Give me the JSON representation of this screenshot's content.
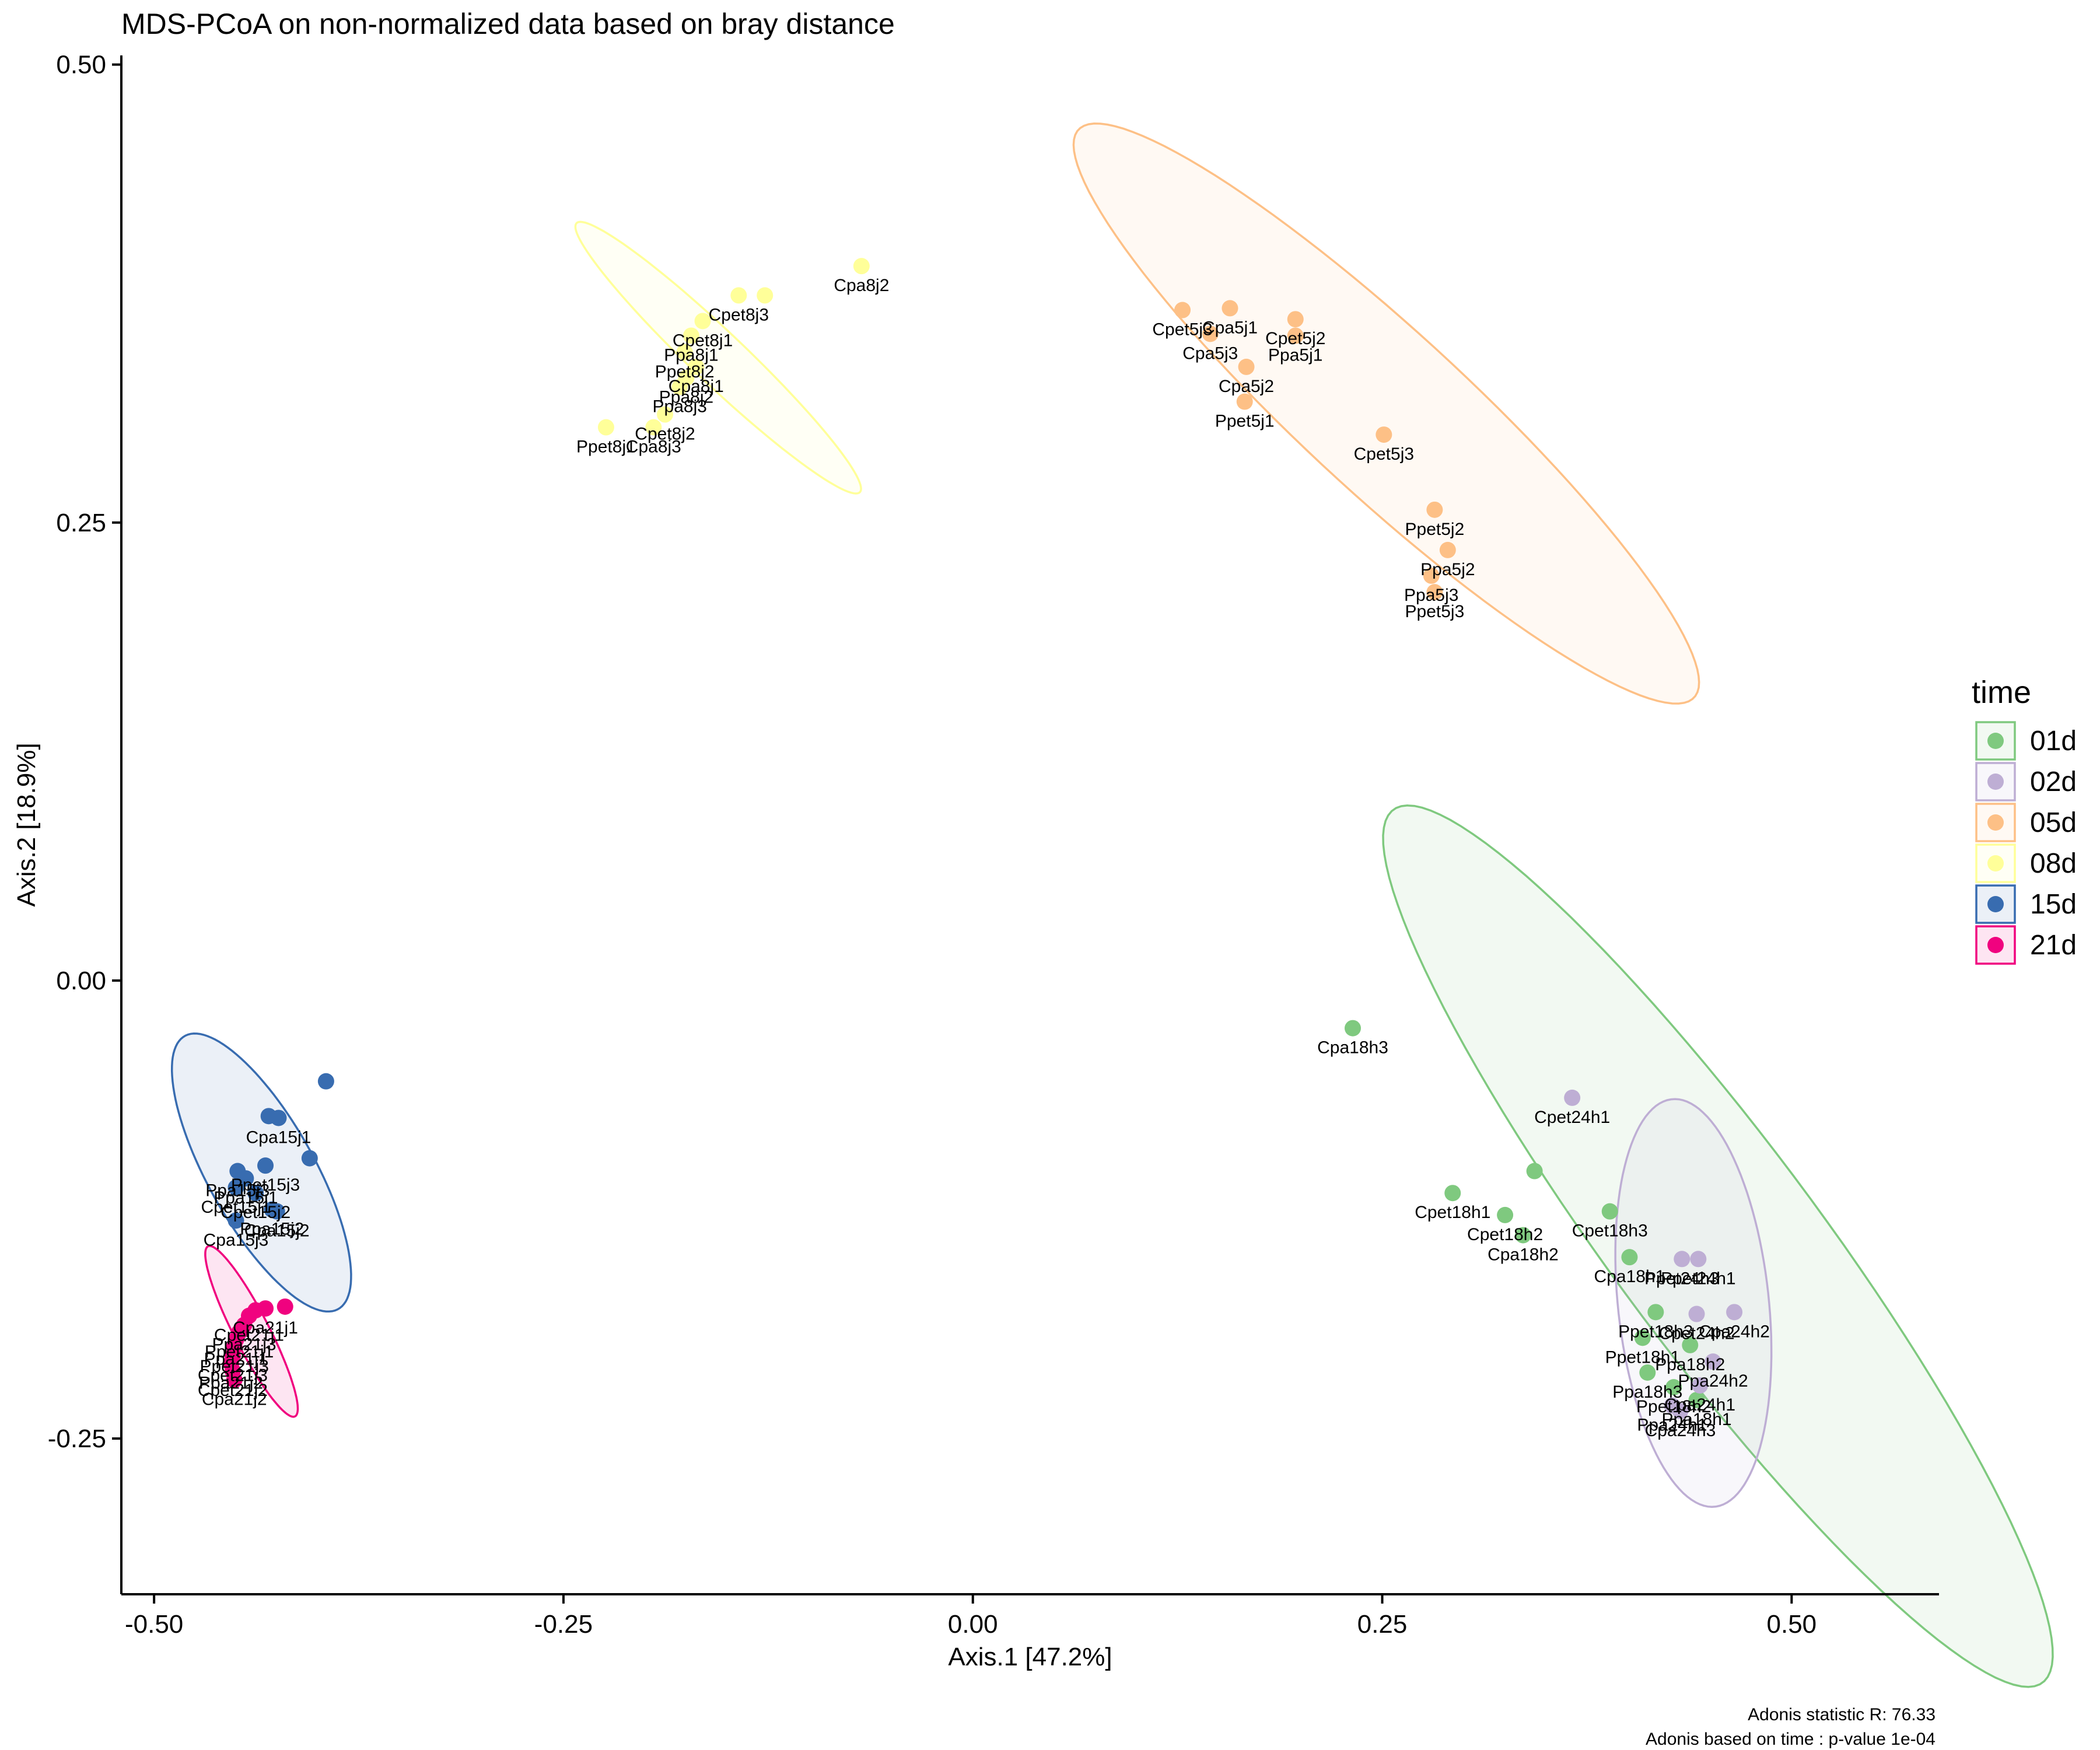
{
  "chart_data": {
    "type": "scatter",
    "title": "MDS-PCoA on non-normalized data based on bray distance",
    "xlabel": "Axis.1   [47.2%]",
    "ylabel": "Axis.2   [18.9%]",
    "xlim": [
      -0.52,
      0.59
    ],
    "ylim": [
      -0.335,
      0.505
    ],
    "xticks": [
      -0.5,
      -0.25,
      0.0,
      0.25,
      0.5
    ],
    "xtick_labels": [
      "-0.50",
      "-0.25",
      "0.00",
      "0.25",
      "0.50"
    ],
    "yticks": [
      -0.25,
      0.0,
      0.25,
      0.5
    ],
    "ytick_labels": [
      "-0.25",
      "0.00",
      "0.25",
      "0.50"
    ],
    "grid": false,
    "legend": {
      "title": "time",
      "placement": "right"
    },
    "series": [
      {
        "name": "01d",
        "color": "#7FC97F",
        "ellipse": {
          "cx": 0.455,
          "cy": -0.145,
          "rx": 0.31,
          "ry": 0.06,
          "angle_deg": -50
        },
        "points": [
          {
            "x": 0.232,
            "y": -0.026,
            "label": "Cpa18h3"
          },
          {
            "x": 0.343,
            "y": -0.104,
            "label": ""
          },
          {
            "x": 0.293,
            "y": -0.116,
            "label": "Cpet18h1"
          },
          {
            "x": 0.325,
            "y": -0.128,
            "label": "Cpet18h2"
          },
          {
            "x": 0.336,
            "y": -0.139,
            "label": "Cpa18h2"
          },
          {
            "x": 0.389,
            "y": -0.126,
            "label": "Cpet18h3"
          },
          {
            "x": 0.401,
            "y": -0.151,
            "label": "Cpa18h1"
          },
          {
            "x": 0.417,
            "y": -0.181,
            "label": "Ppet18h3"
          },
          {
            "x": 0.409,
            "y": -0.195,
            "label": "Ppet18h1"
          },
          {
            "x": 0.438,
            "y": -0.199,
            "label": "Ppa18h2"
          },
          {
            "x": 0.412,
            "y": -0.214,
            "label": "Ppa18h3"
          },
          {
            "x": 0.428,
            "y": -0.222,
            "label": "Ppet18h2"
          },
          {
            "x": 0.442,
            "y": -0.229,
            "label": "Ppa18h1"
          }
        ]
      },
      {
        "name": "02d",
        "color": "#BEAED4",
        "ellipse": {
          "cx": 0.44,
          "cy": -0.176,
          "rx": 0.112,
          "ry": 0.046,
          "angle_deg": -83
        },
        "points": [
          {
            "x": 0.366,
            "y": -0.064,
            "label": "Cpet24h1"
          },
          {
            "x": 0.433,
            "y": -0.152,
            "label": "Ppet24h3"
          },
          {
            "x": 0.443,
            "y": -0.152,
            "label": "Ppet24h1"
          },
          {
            "x": 0.442,
            "y": -0.182,
            "label": "Cpet24h2"
          },
          {
            "x": 0.465,
            "y": -0.181,
            "label": "Cpa24h2"
          },
          {
            "x": 0.452,
            "y": -0.208,
            "label": "Ppa24h2"
          },
          {
            "x": 0.444,
            "y": -0.221,
            "label": "Cpa24h1"
          },
          {
            "x": 0.427,
            "y": -0.232,
            "label": "Ppa24h1"
          },
          {
            "x": 0.432,
            "y": -0.235,
            "label": "Cpa24h3"
          }
        ]
      },
      {
        "name": "05d",
        "color": "#FDC086",
        "ellipse": {
          "cx": 0.2525,
          "cy": 0.3095,
          "rx": 0.2437,
          "ry": 0.0465,
          "angle_deg": -39.25
        },
        "points": [
          {
            "x": 0.128,
            "y": 0.366,
            "label": "Cpet5j3"
          },
          {
            "x": 0.157,
            "y": 0.367,
            "label": "Cpa5j1"
          },
          {
            "x": 0.145,
            "y": 0.353,
            "label": "Cpa5j3"
          },
          {
            "x": 0.197,
            "y": 0.361,
            "label": "Cpet5j2"
          },
          {
            "x": 0.197,
            "y": 0.352,
            "label": "Ppa5j1"
          },
          {
            "x": 0.167,
            "y": 0.335,
            "label": "Cpa5j2"
          },
          {
            "x": 0.166,
            "y": 0.316,
            "label": "Ppet5j1"
          },
          {
            "x": 0.251,
            "y": 0.298,
            "label": "Cpet5j3"
          },
          {
            "x": 0.282,
            "y": 0.257,
            "label": "Ppet5j2"
          },
          {
            "x": 0.29,
            "y": 0.235,
            "label": "Ppa5j2"
          },
          {
            "x": 0.28,
            "y": 0.221,
            "label": "Ppa5j3"
          },
          {
            "x": 0.282,
            "y": 0.212,
            "label": "Ppet5j3"
          }
        ]
      },
      {
        "name": "08d",
        "color": "#FFFF99",
        "ellipse": {
          "cx": -0.1555,
          "cy": 0.34,
          "rx": 0.1135,
          "ry": 0.015,
          "angle_deg": -40.2
        },
        "points": [
          {
            "x": -0.068,
            "y": 0.39,
            "label": "Cpa8j2"
          },
          {
            "x": -0.143,
            "y": 0.374,
            "label": "Cpet8j3"
          },
          {
            "x": -0.127,
            "y": 0.374,
            "label": ""
          },
          {
            "x": -0.165,
            "y": 0.36,
            "label": "Cpet8j1"
          },
          {
            "x": -0.172,
            "y": 0.352,
            "label": "Ppa8j1"
          },
          {
            "x": -0.176,
            "y": 0.343,
            "label": "Ppet8j2"
          },
          {
            "x": -0.169,
            "y": 0.335,
            "label": "Cpa8j1"
          },
          {
            "x": -0.175,
            "y": 0.329,
            "label": "Ppa8j2"
          },
          {
            "x": -0.179,
            "y": 0.324,
            "label": "Ppa8j3"
          },
          {
            "x": -0.188,
            "y": 0.309,
            "label": "Cpet8j2"
          },
          {
            "x": -0.224,
            "y": 0.302,
            "label": "Ppet8j1"
          },
          {
            "x": -0.195,
            "y": 0.302,
            "label": "Cpa8j3"
          }
        ]
      },
      {
        "name": "15d",
        "color": "#386CB0",
        "ellipse": {
          "cx": -0.4344,
          "cy": -0.1048,
          "rx": 0.0881,
          "ry": 0.0315,
          "angle_deg": -57.05
        },
        "points": [
          {
            "x": -0.395,
            "y": -0.055,
            "label": ""
          },
          {
            "x": -0.43,
            "y": -0.074,
            "label": ""
          },
          {
            "x": -0.424,
            "y": -0.075,
            "label": "Cpa15j1"
          },
          {
            "x": -0.405,
            "y": -0.097,
            "label": ""
          },
          {
            "x": -0.432,
            "y": -0.101,
            "label": "Ppet15j3"
          },
          {
            "x": -0.449,
            "y": -0.104,
            "label": "Ppa15j3"
          },
          {
            "x": -0.444,
            "y": -0.108,
            "label": "Ppa15j1"
          },
          {
            "x": -0.45,
            "y": -0.113,
            "label": "Cpet15j1"
          },
          {
            "x": -0.438,
            "y": -0.116,
            "label": "Cpet15j2"
          },
          {
            "x": -0.428,
            "y": -0.125,
            "label": "Ppa15j2"
          },
          {
            "x": -0.425,
            "y": -0.126,
            "label": "Cpa15j2"
          },
          {
            "x": -0.45,
            "y": -0.131,
            "label": "Cpa15j3"
          }
        ]
      },
      {
        "name": "21d",
        "color": "#F0027F",
        "ellipse": {
          "cx": -0.4405,
          "cy": -0.1915,
          "rx": 0.0535,
          "ry": 0.0105,
          "angle_deg": -60
        },
        "points": [
          {
            "x": -0.42,
            "y": -0.178,
            "label": ""
          },
          {
            "x": -0.432,
            "y": -0.179,
            "label": "Cpa21j1"
          },
          {
            "x": -0.438,
            "y": -0.18,
            "label": ""
          },
          {
            "x": -0.442,
            "y": -0.183,
            "label": "Cpet21j1"
          },
          {
            "x": -0.445,
            "y": -0.188,
            "label": "Ppa21j3"
          },
          {
            "x": -0.448,
            "y": -0.192,
            "label": "Ppet21j1"
          },
          {
            "x": -0.45,
            "y": -0.196,
            "label": "Ppa21j1"
          },
          {
            "x": -0.451,
            "y": -0.2,
            "label": "Ppet21j3"
          },
          {
            "x": -0.452,
            "y": -0.205,
            "label": "Cpet21j3"
          },
          {
            "x": -0.453,
            "y": -0.209,
            "label": "Ppa21j2"
          },
          {
            "x": -0.452,
            "y": -0.213,
            "label": "Cpet21j2"
          },
          {
            "x": -0.451,
            "y": -0.218,
            "label": "Cpa21j2"
          }
        ]
      }
    ],
    "annotations": [
      "Adonis statistic R: 76.33",
      "Adonis based on  time : p-value 1e-04"
    ]
  }
}
